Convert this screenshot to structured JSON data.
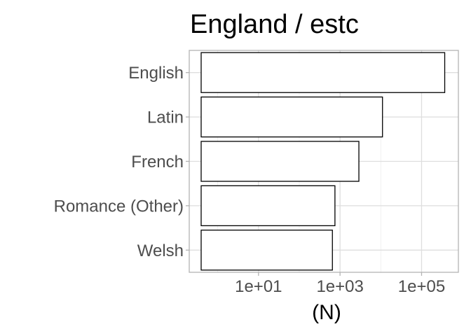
{
  "chart_data": {
    "type": "bar",
    "orientation": "horizontal",
    "title": "England / estc",
    "xlabel": "(N)",
    "ylabel": "",
    "x_scale": "log10",
    "xlim": [
      0.2,
      800000
    ],
    "x_ticks": [
      {
        "value": 10,
        "label": "1e+01"
      },
      {
        "value": 1000,
        "label": "1e+03"
      },
      {
        "value": 100000,
        "label": "1e+05"
      }
    ],
    "categories": [
      "English",
      "Latin",
      "French",
      "Romance (Other)",
      "Welsh"
    ],
    "values": [
      370000,
      11000,
      2900,
      750,
      650
    ],
    "grid": true,
    "legend": "none",
    "colors": {
      "bar_fill": "#ffffff",
      "bar_stroke": "#000000",
      "grid": "#dedede",
      "panel_border": "#b3b3b3"
    }
  }
}
